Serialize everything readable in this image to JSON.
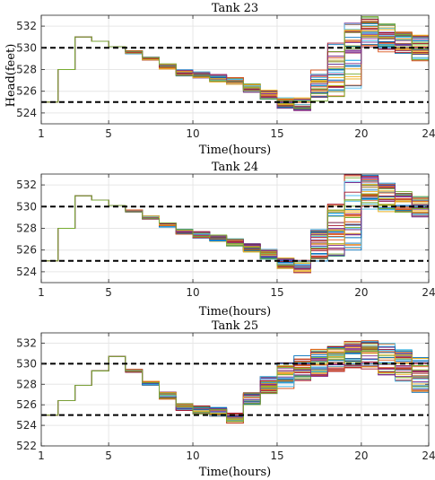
{
  "chart_data": [
    {
      "type": "line",
      "title": "Tank 23",
      "xlabel": "Time(hours)",
      "ylabel": "Head(feet)",
      "xlim": [
        1,
        24
      ],
      "ylim": [
        523,
        533
      ],
      "xticks": [
        1,
        5,
        10,
        15,
        20,
        24
      ],
      "yticks": [
        524,
        526,
        528,
        530,
        532
      ],
      "grid": true,
      "step": true,
      "thresholds": [
        530,
        525
      ],
      "base": [
        525,
        528,
        531,
        530.6,
        530.1,
        529.6,
        529,
        528.3,
        527.7,
        527.5,
        527.2,
        526.9,
        526.3,
        525.7,
        524.9,
        524.8,
        526.5,
        528,
        529,
        531.5,
        530.9,
        530.5,
        530,
        529.5
      ],
      "spread": [
        0,
        0,
        0,
        0,
        0,
        0.15,
        0.15,
        0.25,
        0.3,
        0.3,
        0.35,
        0.35,
        0.4,
        0.45,
        0.5,
        0.6,
        1.6,
        2.5,
        3.3,
        1.4,
        1.3,
        1.0,
        1.2,
        1.3
      ],
      "num_traces": 40
    },
    {
      "type": "line",
      "title": "Tank 24",
      "xlabel": "Time(hours)",
      "ylabel": "",
      "xlim": [
        1,
        24
      ],
      "ylim": [
        523,
        533
      ],
      "xticks": [
        1,
        5,
        10,
        15,
        20,
        24
      ],
      "yticks": [
        524,
        526,
        528,
        530,
        532
      ],
      "grid": true,
      "step": true,
      "thresholds": [
        530,
        525
      ],
      "base": [
        525,
        528,
        531,
        530.6,
        530.1,
        529.6,
        529,
        528.3,
        527.7,
        527.4,
        527.1,
        526.7,
        526.2,
        525.6,
        524.8,
        524.5,
        526.5,
        528,
        529.5,
        531.3,
        530.8,
        530.4,
        530,
        529.5
      ],
      "spread": [
        0,
        0,
        0,
        0,
        0,
        0.1,
        0.15,
        0.2,
        0.25,
        0.3,
        0.3,
        0.35,
        0.4,
        0.45,
        0.5,
        0.6,
        1.6,
        2.6,
        3.8,
        1.6,
        1.4,
        1.0,
        1.0,
        1.3
      ],
      "num_traces": 40
    },
    {
      "type": "line",
      "title": "Tank 25",
      "xlabel": "Time(hours)",
      "ylabel": "",
      "xlim": [
        1,
        24
      ],
      "ylim": [
        522,
        533
      ],
      "xticks": [
        1,
        5,
        10,
        15,
        20,
        24
      ],
      "yticks": [
        522,
        524,
        526,
        528,
        530,
        532
      ],
      "grid": true,
      "step": true,
      "thresholds": [
        530,
        525
      ],
      "base": [
        525,
        526.4,
        527.9,
        529.3,
        530.7,
        529.3,
        528.1,
        526.9,
        525.8,
        525.5,
        525.3,
        524.7,
        526.6,
        527.9,
        528.8,
        529.6,
        530.1,
        530.6,
        530.8,
        530.9,
        530.5,
        529.8,
        528.8,
        527.8
      ],
      "spread": [
        0,
        0,
        0,
        0,
        0,
        0.15,
        0.2,
        0.35,
        0.35,
        0.4,
        0.45,
        0.5,
        0.6,
        0.9,
        1.3,
        1.3,
        1.4,
        1.4,
        1.4,
        1.5,
        1.6,
        1.6,
        1.8,
        2.0
      ],
      "num_traces": 40
    }
  ],
  "colors": {
    "axes": "#262626",
    "grid": "#e6e6e6",
    "threshold": "#000000",
    "series_palette": [
      "#0072bd",
      "#d95319",
      "#edb120",
      "#7e2f8e",
      "#77ac30",
      "#4dbeee",
      "#a2142f"
    ]
  }
}
